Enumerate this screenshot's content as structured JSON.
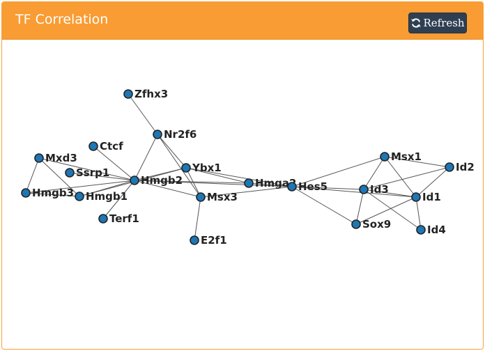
{
  "header": {
    "title": "TF Correlation",
    "refresh_label": "Refresh"
  },
  "icons": {
    "refresh": "refresh-icon"
  },
  "colors": {
    "header": "#f89c33",
    "button": "#2f3f52",
    "node_fill": "#1d77b5"
  },
  "graph": {
    "nodes": [
      {
        "id": "Zfhx3",
        "label": "Zfhx3"
      },
      {
        "id": "Nr2f6",
        "label": "Nr2f6"
      },
      {
        "id": "Ctcf",
        "label": "Ctcf"
      },
      {
        "id": "Mxd3",
        "label": "Mxd3"
      },
      {
        "id": "Ssrp1",
        "label": "Ssrp1"
      },
      {
        "id": "Ybx1",
        "label": "Ybx1"
      },
      {
        "id": "Hmgb2",
        "label": "Hmgb2"
      },
      {
        "id": "Hmgb3",
        "label": "Hmgb3"
      },
      {
        "id": "Hmgb1",
        "label": "Hmgb1"
      },
      {
        "id": "Msx3",
        "label": "Msx3"
      },
      {
        "id": "Hmga2",
        "label": "Hmga2"
      },
      {
        "id": "Hes5",
        "label": "Hes5"
      },
      {
        "id": "Terf1",
        "label": "Terf1"
      },
      {
        "id": "E2f1",
        "label": "E2f1"
      },
      {
        "id": "Msx1",
        "label": "Msx1"
      },
      {
        "id": "Id2",
        "label": "Id2"
      },
      {
        "id": "Id3",
        "label": "Id3"
      },
      {
        "id": "Id1",
        "label": "Id1"
      },
      {
        "id": "Sox9",
        "label": "Sox9"
      },
      {
        "id": "Id4",
        "label": "Id4"
      }
    ],
    "edges": [
      [
        "Zfhx3",
        "Nr2f6"
      ],
      [
        "Nr2f6",
        "Hmgb2"
      ],
      [
        "Nr2f6",
        "Ybx1"
      ],
      [
        "Nr2f6",
        "Msx3"
      ],
      [
        "Ctcf",
        "Hmgb2"
      ],
      [
        "Mxd3",
        "Hmgb3"
      ],
      [
        "Mxd3",
        "Hmgb1"
      ],
      [
        "Mxd3",
        "Hmgb2"
      ],
      [
        "Ssrp1",
        "Hmgb2"
      ],
      [
        "Hmgb3",
        "Hmgb2"
      ],
      [
        "Hmgb3",
        "Hmgb1"
      ],
      [
        "Hmgb1",
        "Hmgb2"
      ],
      [
        "Hmgb1",
        "Ybx1"
      ],
      [
        "Terf1",
        "Hmgb2"
      ],
      [
        "Hmgb2",
        "Ybx1"
      ],
      [
        "Hmgb2",
        "Msx3"
      ],
      [
        "Hmgb2",
        "Hmga2"
      ],
      [
        "Hmgb2",
        "Hes5"
      ],
      [
        "Ybx1",
        "Msx3"
      ],
      [
        "Ybx1",
        "Hmga2"
      ],
      [
        "Ybx1",
        "Hes5"
      ],
      [
        "Msx3",
        "E2f1"
      ],
      [
        "Msx3",
        "Hes5"
      ],
      [
        "Hmga2",
        "Hes5"
      ],
      [
        "Hes5",
        "Msx1"
      ],
      [
        "Hes5",
        "Id3"
      ],
      [
        "Hes5",
        "Id1"
      ],
      [
        "Hes5",
        "Sox9"
      ],
      [
        "Msx1",
        "Id2"
      ],
      [
        "Msx1",
        "Id3"
      ],
      [
        "Msx1",
        "Id1"
      ],
      [
        "Id2",
        "Id3"
      ],
      [
        "Id2",
        "Id1"
      ],
      [
        "Id3",
        "Id1"
      ],
      [
        "Id3",
        "Sox9"
      ],
      [
        "Id3",
        "Id4"
      ],
      [
        "Id1",
        "Sox9"
      ],
      [
        "Id1",
        "Id4"
      ]
    ]
  }
}
